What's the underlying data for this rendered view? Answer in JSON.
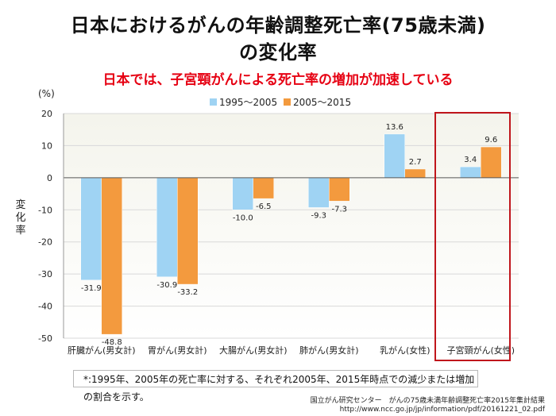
{
  "slide": {
    "title_line1": "日本におけるがんの年齢調整死亡率(75歳未満)",
    "title_line2": "の変化率",
    "subtitle": "日本では、子宮頸がんによる死亡率の増加が加速している",
    "footnote": "*:1995年、2005年の死亡率に対する、それぞれ2005年、2015年時点での減少または増加の割合を示す。",
    "source_line1": "国立がん研究センター　がんの75歳未満年齢調整死亡率2015年集計結果",
    "source_line2": "http://www.ncc.go.jp/jp/information/pdf/20161221_02.pdf"
  },
  "colors": {
    "series1": "#9fd3f3",
    "series2": "#f39a3e",
    "highlight_box": "#c0161c",
    "plot_bg_top": "#f4f4ec",
    "plot_bg_bottom": "#ffffff"
  },
  "chart_data": {
    "type": "bar",
    "unit_label": "(%)",
    "ylabel": "変化率",
    "ylim": [
      -50,
      20
    ],
    "yticks": [
      20,
      10,
      0,
      -10,
      -20,
      -30,
      -40,
      -50
    ],
    "categories": [
      "肝臓がん(男女計)",
      "胃がん(男女計)",
      "大腸がん(男女計)",
      "肺がん(男女計)",
      "乳がん(女性)",
      "子宮頸がん(女性)"
    ],
    "series": [
      {
        "name": "1995～2005",
        "values": [
          -31.9,
          -30.9,
          -10.0,
          -9.3,
          13.6,
          3.4
        ],
        "labels": [
          "-31.9",
          "-30.9",
          "-10.0",
          "-9.3",
          "13.6",
          "3.4"
        ]
      },
      {
        "name": "2005～2015",
        "values": [
          -48.8,
          -33.2,
          -6.5,
          -7.3,
          2.7,
          9.6
        ],
        "labels": [
          "-48.8",
          "-33.2",
          "-6.5",
          "-7.3",
          "2.7",
          "9.6"
        ]
      }
    ],
    "highlighted_category": "子宮頸がん(女性)"
  }
}
